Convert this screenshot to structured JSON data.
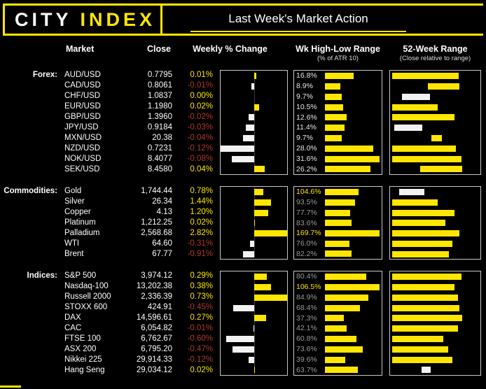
{
  "header": {
    "logo_city": "CITY",
    "logo_index": "INDEX",
    "title": "Last Week's Market Action"
  },
  "columns": {
    "market": "Market",
    "close": "Close",
    "weekly": "Weekly % Change",
    "atr": "Wk High-Low Range",
    "atr_sub": "(% of ATR 10)",
    "range": "52-Week Range",
    "range_sub": "(Close relative to range)"
  },
  "colors": {
    "accent": "#FFE600",
    "negative": "#B0392E",
    "barwhite": "#F2F2F2",
    "dim": "#9B9B9B"
  },
  "chart_data": {
    "type": "table",
    "title": "Last Week's Market Action",
    "legend": "bar charts per group: weekly % change (zero-centered, yellow=positive, white=negative), week high-low range as % of ATR 10 (bar scaled to group max), close relative to 52-week range",
    "groups": [
      {
        "label": "Forex:",
        "weekly_axis_max": 0.12,
        "atr_axis_max": 31.6,
        "rows": [
          {
            "market": "AUD/USD",
            "close": "0.7795",
            "weekly_label": "0.01%",
            "weekly_pct": 0.01,
            "atr_label": "16.8%",
            "atr_pct": 16.8,
            "atr_label_color": "white",
            "range_bar": {
              "start": 0.02,
              "end": 0.76,
              "color": "yellow"
            }
          },
          {
            "market": "CAD/USD",
            "close": "0.8061",
            "weekly_label": "-0.01%",
            "weekly_pct": -0.01,
            "atr_label": "8.9%",
            "atr_pct": 8.9,
            "atr_label_color": "white",
            "range_bar": {
              "start": 0.42,
              "end": 0.77,
              "color": "yellow"
            }
          },
          {
            "market": "CHF/USD",
            "close": "1.0837",
            "weekly_label": "0.00%",
            "weekly_pct": 0,
            "atr_label": "9.7%",
            "atr_pct": 9.7,
            "atr_label_color": "white",
            "range_bar": {
              "start": 0.13,
              "end": 0.44,
              "color": "white"
            }
          },
          {
            "market": "EUR/USD",
            "close": "1.1980",
            "weekly_label": "0.02%",
            "weekly_pct": 0.02,
            "atr_label": "10.5%",
            "atr_pct": 10.5,
            "atr_label_color": "white",
            "range_bar": {
              "start": 0.02,
              "end": 0.53,
              "color": "yellow"
            }
          },
          {
            "market": "GBP/USD",
            "close": "1.3960",
            "weekly_label": "-0.02%",
            "weekly_pct": -0.02,
            "atr_label": "12.6%",
            "atr_pct": 12.6,
            "atr_label_color": "white",
            "range_bar": {
              "start": 0.02,
              "end": 0.71,
              "color": "yellow"
            }
          },
          {
            "market": "JPY/USD",
            "close": "0.9184",
            "weekly_label": "-0.03%",
            "weekly_pct": -0.03,
            "atr_label": "11.4%",
            "atr_pct": 11.4,
            "atr_label_color": "white",
            "range_bar": {
              "start": 0.05,
              "end": 0.36,
              "color": "white"
            }
          },
          {
            "market": "MXN/USD",
            "close": "20.38",
            "weekly_label": "-0.04%",
            "weekly_pct": -0.04,
            "atr_label": "9.7%",
            "atr_pct": 9.7,
            "atr_label_color": "white",
            "range_bar": {
              "start": 0.46,
              "end": 0.57,
              "color": "yellow"
            }
          },
          {
            "market": "NZD/USD",
            "close": "0.7231",
            "weekly_label": "-0.12%",
            "weekly_pct": -0.12,
            "atr_label": "28.0%",
            "atr_pct": 28.0,
            "atr_label_color": "white",
            "range_bar": {
              "start": 0.02,
              "end": 0.73,
              "color": "yellow"
            }
          },
          {
            "market": "NOK/USD",
            "close": "8.4077",
            "weekly_label": "-0.08%",
            "weekly_pct": -0.08,
            "atr_label": "31.6%",
            "atr_pct": 31.6,
            "atr_label_color": "white",
            "range_bar": {
              "start": 0.02,
              "end": 0.79,
              "color": "yellow"
            }
          },
          {
            "market": "SEK/USD",
            "close": "8.4580",
            "weekly_label": "0.04%",
            "weekly_pct": 0.04,
            "atr_label": "26.2%",
            "atr_pct": 26.2,
            "atr_label_color": "white",
            "range_bar": {
              "start": 0.33,
              "end": 0.8,
              "color": "yellow"
            }
          }
        ]
      },
      {
        "label": "Commodities:",
        "weekly_axis_max": 2.82,
        "atr_axis_max": 169.7,
        "rows": [
          {
            "market": "Gold",
            "close": "1,744.44",
            "weekly_label": "0.78%",
            "weekly_pct": 0.78,
            "atr_label": "104.6%",
            "atr_pct": 104.6,
            "atr_label_color": "yellow",
            "range_bar": {
              "start": 0.1,
              "end": 0.38,
              "color": "white"
            }
          },
          {
            "market": "Silver",
            "close": "26.34",
            "weekly_label": "1.44%",
            "weekly_pct": 1.44,
            "atr_label": "93.5%",
            "atr_pct": 93.5,
            "atr_label_color": "gray",
            "range_bar": {
              "start": 0.02,
              "end": 0.53,
              "color": "yellow"
            }
          },
          {
            "market": "Copper",
            "close": "4.13",
            "weekly_label": "1.20%",
            "weekly_pct": 1.2,
            "atr_label": "77.7%",
            "atr_pct": 77.7,
            "atr_label_color": "gray",
            "range_bar": {
              "start": 0.02,
              "end": 0.71,
              "color": "yellow"
            }
          },
          {
            "market": "Platinum",
            "close": "1,212.25",
            "weekly_label": "0.02%",
            "weekly_pct": 0.02,
            "atr_label": "83.6%",
            "atr_pct": 83.6,
            "atr_label_color": "gray",
            "range_bar": {
              "start": 0.02,
              "end": 0.61,
              "color": "yellow"
            }
          },
          {
            "market": "Palladium",
            "close": "2,568.68",
            "weekly_label": "2.82%",
            "weekly_pct": 2.82,
            "atr_label": "169.7%",
            "atr_pct": 169.7,
            "atr_label_color": "yellow",
            "range_bar": {
              "start": 0.02,
              "end": 0.77,
              "color": "yellow"
            }
          },
          {
            "market": "WTI",
            "close": "64.60",
            "weekly_label": "-0.31%",
            "weekly_pct": -0.31,
            "atr_label": "76.0%",
            "atr_pct": 76.0,
            "atr_label_color": "gray",
            "range_bar": {
              "start": 0.02,
              "end": 0.69,
              "color": "yellow"
            }
          },
          {
            "market": "Brent",
            "close": "67.77",
            "weekly_label": "-0.91%",
            "weekly_pct": -0.91,
            "atr_label": "82.2%",
            "atr_pct": 82.2,
            "atr_label_color": "gray",
            "range_bar": {
              "start": 0.02,
              "end": 0.65,
              "color": "yellow"
            }
          }
        ]
      },
      {
        "label": "Indices:",
        "weekly_axis_max": 0.73,
        "atr_axis_max": 106.5,
        "rows": [
          {
            "market": "S&P 500",
            "close": "3,974.12",
            "weekly_label": "0.29%",
            "weekly_pct": 0.29,
            "atr_label": "80.4%",
            "atr_pct": 80.4,
            "atr_label_color": "gray",
            "range_bar": {
              "start": 0.02,
              "end": 0.79,
              "color": "yellow"
            }
          },
          {
            "market": "Nasdaq-100",
            "close": "13,202.38",
            "weekly_label": "0.38%",
            "weekly_pct": 0.38,
            "atr_label": "106.5%",
            "atr_pct": 106.5,
            "atr_label_color": "yellow",
            "range_bar": {
              "start": 0.02,
              "end": 0.71,
              "color": "yellow"
            }
          },
          {
            "market": "Russell 2000",
            "close": "2,336.39",
            "weekly_label": "0.73%",
            "weekly_pct": 0.73,
            "atr_label": "84.9%",
            "atr_pct": 84.9,
            "atr_label_color": "gray",
            "range_bar": {
              "start": 0.02,
              "end": 0.75,
              "color": "yellow"
            }
          },
          {
            "market": "STOXX 600",
            "close": "424.91",
            "weekly_label": "-0.45%",
            "weekly_pct": -0.45,
            "atr_label": "68.4%",
            "atr_pct": 68.4,
            "atr_label_color": "gray",
            "range_bar": {
              "start": 0.02,
              "end": 0.77,
              "color": "yellow"
            }
          },
          {
            "market": "DAX",
            "close": "14,596.61",
            "weekly_label": "0.27%",
            "weekly_pct": 0.27,
            "atr_label": "37.3%",
            "atr_pct": 37.3,
            "atr_label_color": "gray",
            "range_bar": {
              "start": 0.02,
              "end": 0.8,
              "color": "yellow"
            }
          },
          {
            "market": "CAC",
            "close": "6,054.82",
            "weekly_label": "-0.01%",
            "weekly_pct": -0.01,
            "atr_label": "42.1%",
            "atr_pct": 42.1,
            "atr_label_color": "gray",
            "range_bar": {
              "start": 0.02,
              "end": 0.75,
              "color": "yellow"
            }
          },
          {
            "market": "FTSE 100",
            "close": "6,762.67",
            "weekly_label": "-0.60%",
            "weekly_pct": -0.6,
            "atr_label": "60.8%",
            "atr_pct": 60.8,
            "atr_label_color": "gray",
            "range_bar": {
              "start": 0.02,
              "end": 0.59,
              "color": "yellow"
            }
          },
          {
            "market": "ASX 200",
            "close": "6,795.20",
            "weekly_label": "-0.47%",
            "weekly_pct": -0.47,
            "atr_label": "73.6%",
            "atr_pct": 73.6,
            "atr_label_color": "gray",
            "range_bar": {
              "start": 0.02,
              "end": 0.64,
              "color": "yellow"
            }
          },
          {
            "market": "Nikkei 225",
            "close": "29,914.33",
            "weekly_label": "-0.12%",
            "weekly_pct": -0.12,
            "atr_label": "39.6%",
            "atr_pct": 39.6,
            "atr_label_color": "gray",
            "range_bar": {
              "start": 0.02,
              "end": 0.69,
              "color": "yellow"
            }
          },
          {
            "market": "Hang Seng",
            "close": "29,034.12",
            "weekly_label": "0.02%",
            "weekly_pct": 0.02,
            "atr_label": "63.7%",
            "atr_pct": 63.7,
            "atr_label_color": "gray",
            "range_bar": {
              "start": 0.35,
              "end": 0.45,
              "color": "white"
            }
          }
        ]
      }
    ]
  }
}
